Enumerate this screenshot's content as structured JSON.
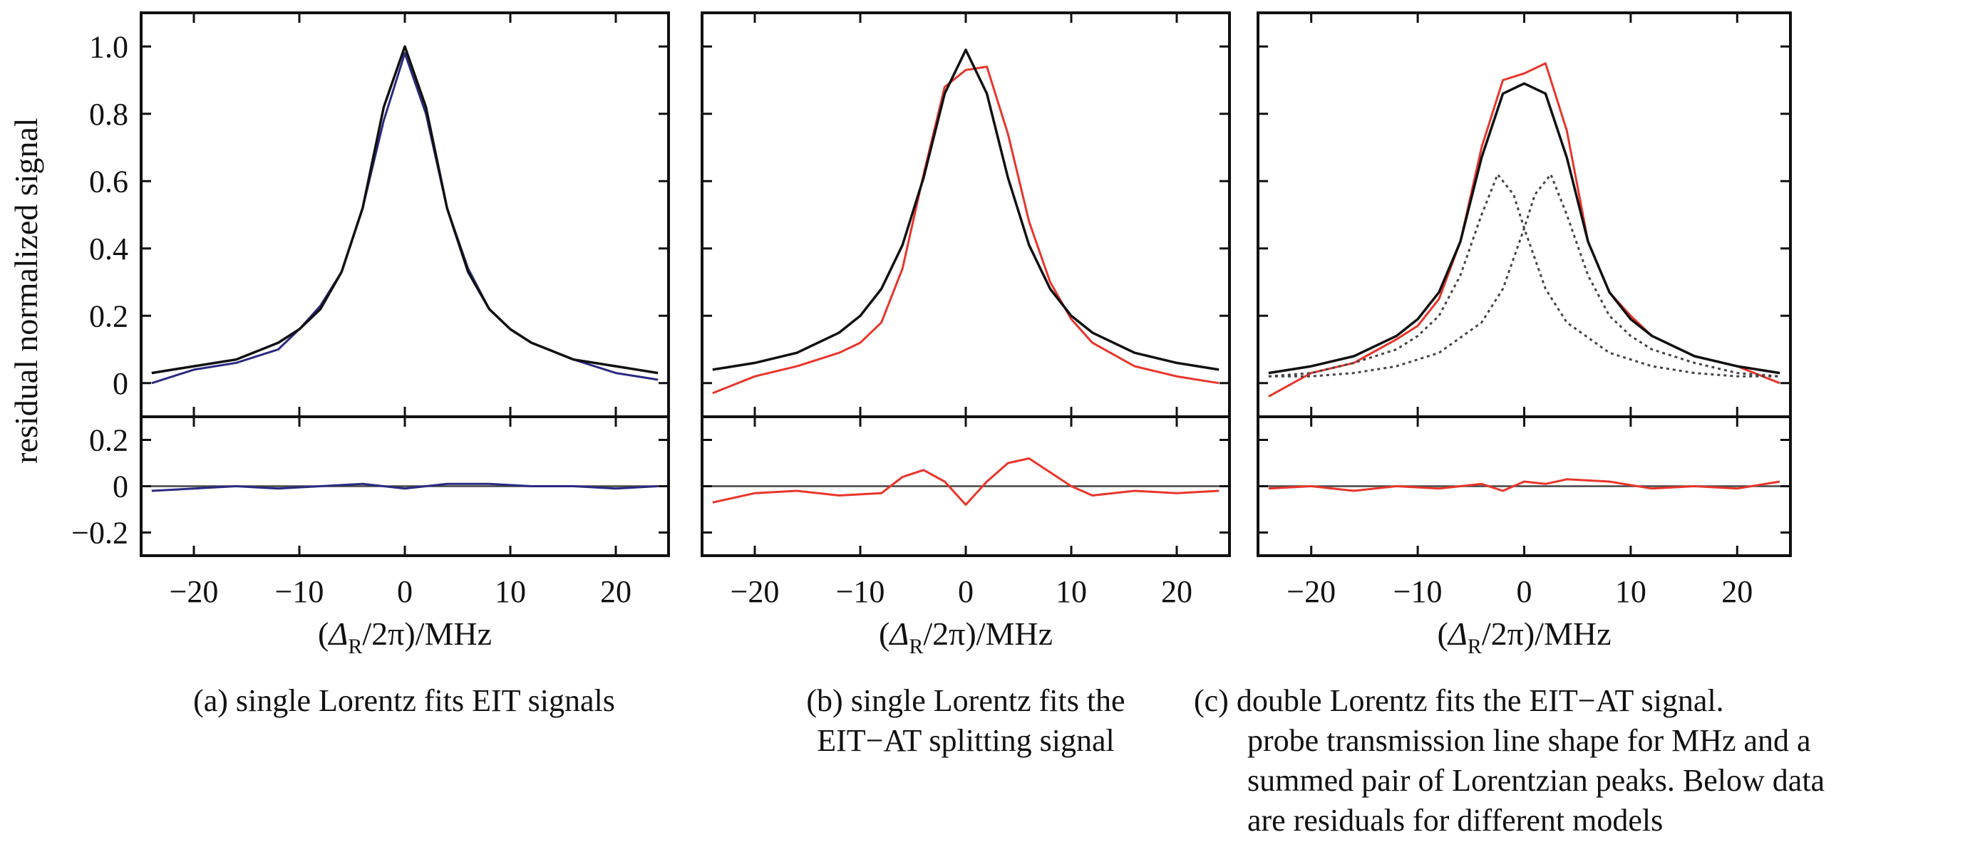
{
  "figure": {
    "ylabel": "residual normalized signal",
    "xlabel": "(Δ_R/2π)/MHz",
    "xlabel_parts": {
      "prefix": "(",
      "delta": "Δ",
      "subscript": "R",
      "suffix": "/2π)/MHz"
    },
    "colors": {
      "blue": "#2a2a82",
      "red": "#e8352b",
      "fit": "#111111",
      "component": "#444444"
    }
  },
  "chart_data": [
    {
      "id": "a",
      "type": "line",
      "caption_lines": [
        "(a) single Lorentz fits EIT signals"
      ],
      "xlim": [
        -25,
        25
      ],
      "x_ticks": [
        -20,
        -10,
        0,
        10,
        20
      ],
      "x_tick_labels": [
        "−20",
        "−10",
        "0",
        "10",
        "20"
      ],
      "upper": {
        "ylim": [
          -0.1,
          1.1
        ],
        "y_ticks": [
          0,
          0.2,
          0.4,
          0.6,
          0.8,
          1.0
        ],
        "y_tick_labels": [
          "0",
          "0.2",
          "0.4",
          "0.6",
          "0.8",
          "1.0"
        ],
        "series": [
          {
            "role": "data",
            "color": "blue",
            "x": [
              -24,
              -20,
              -16,
              -12,
              -10,
              -8,
              -6,
              -4,
              -2,
              0,
              2,
              4,
              6,
              8,
              10,
              12,
              16,
              20,
              24
            ],
            "y": [
              0.0,
              0.04,
              0.06,
              0.1,
              0.16,
              0.23,
              0.33,
              0.52,
              0.78,
              0.98,
              0.8,
              0.52,
              0.34,
              0.22,
              0.16,
              0.12,
              0.07,
              0.03,
              0.01
            ]
          },
          {
            "role": "fit",
            "color": "fit",
            "x": [
              -24,
              -20,
              -16,
              -12,
              -10,
              -8,
              -6,
              -4,
              -2,
              0,
              2,
              4,
              6,
              8,
              10,
              12,
              16,
              20,
              24
            ],
            "y": [
              0.03,
              0.05,
              0.07,
              0.12,
              0.16,
              0.22,
              0.33,
              0.52,
              0.82,
              1.0,
              0.82,
              0.52,
              0.33,
              0.22,
              0.16,
              0.12,
              0.07,
              0.05,
              0.03
            ]
          }
        ]
      },
      "lower": {
        "ylim": [
          -0.3,
          0.3
        ],
        "y_ticks": [
          -0.2,
          0,
          0.2
        ],
        "y_tick_labels": [
          "−0.2",
          "0",
          "0.2"
        ],
        "series": [
          {
            "role": "residual",
            "color": "blue",
            "x": [
              -24,
              -20,
              -16,
              -12,
              -8,
              -4,
              0,
              4,
              8,
              12,
              16,
              20,
              24
            ],
            "y": [
              -0.02,
              -0.01,
              0.0,
              -0.01,
              0.0,
              0.01,
              -0.01,
              0.01,
              0.01,
              0.0,
              0.0,
              -0.01,
              0.0
            ]
          }
        ]
      }
    },
    {
      "id": "b",
      "type": "line",
      "caption_lines": [
        "(b) single Lorentz fits the",
        "EIT−AT splitting signal"
      ],
      "xlim": [
        -25,
        25
      ],
      "x_ticks": [
        -20,
        -10,
        0,
        10,
        20
      ],
      "x_tick_labels": [
        "−20",
        "−10",
        "0",
        "10",
        "20"
      ],
      "upper": {
        "ylim": [
          -0.1,
          1.1
        ],
        "y_ticks": [
          0,
          0.2,
          0.4,
          0.6,
          0.8,
          1.0
        ],
        "y_tick_labels": [],
        "series": [
          {
            "role": "data",
            "color": "red",
            "x": [
              -24,
              -20,
              -16,
              -12,
              -10,
              -8,
              -6,
              -4,
              -2,
              0,
              2,
              4,
              6,
              8,
              10,
              12,
              16,
              20,
              24
            ],
            "y": [
              -0.03,
              0.02,
              0.05,
              0.09,
              0.12,
              0.18,
              0.34,
              0.62,
              0.88,
              0.93,
              0.94,
              0.74,
              0.48,
              0.3,
              0.19,
              0.12,
              0.05,
              0.02,
              0.0
            ]
          },
          {
            "role": "fit",
            "color": "fit",
            "x": [
              -24,
              -20,
              -16,
              -12,
              -10,
              -8,
              -6,
              -4,
              -2,
              0,
              2,
              4,
              6,
              8,
              10,
              12,
              16,
              20,
              24
            ],
            "y": [
              0.04,
              0.06,
              0.09,
              0.15,
              0.2,
              0.28,
              0.41,
              0.61,
              0.86,
              0.99,
              0.86,
              0.61,
              0.41,
              0.28,
              0.2,
              0.15,
              0.09,
              0.06,
              0.04
            ]
          }
        ]
      },
      "lower": {
        "ylim": [
          -0.3,
          0.3
        ],
        "y_ticks": [
          -0.2,
          0,
          0.2
        ],
        "y_tick_labels": [],
        "series": [
          {
            "role": "residual",
            "color": "red",
            "x": [
              -24,
              -20,
              -16,
              -12,
              -8,
              -6,
              -4,
              -2,
              0,
              2,
              4,
              6,
              8,
              10,
              12,
              16,
              20,
              24
            ],
            "y": [
              -0.07,
              -0.03,
              -0.02,
              -0.04,
              -0.03,
              0.04,
              0.07,
              0.02,
              -0.08,
              0.02,
              0.1,
              0.12,
              0.06,
              0.0,
              -0.04,
              -0.02,
              -0.03,
              -0.02
            ]
          }
        ]
      }
    },
    {
      "id": "c",
      "type": "line",
      "caption_lines": [
        "(c) double Lorentz fits the EIT−AT signal.",
        "probe transmission line shape for MHz and a",
        "summed pair of Lorentzian peaks. Below data",
        "are residuals for different models"
      ],
      "xlim": [
        -25,
        25
      ],
      "x_ticks": [
        -20,
        -10,
        0,
        10,
        20
      ],
      "x_tick_labels": [
        "−20",
        "−10",
        "0",
        "10",
        "20"
      ],
      "upper": {
        "ylim": [
          -0.1,
          1.1
        ],
        "y_ticks": [
          0,
          0.2,
          0.4,
          0.6,
          0.8,
          1.0
        ],
        "y_tick_labels": [],
        "series": [
          {
            "role": "data",
            "color": "red",
            "x": [
              -24,
              -20,
              -16,
              -12,
              -10,
              -8,
              -6,
              -4,
              -2,
              0,
              2,
              4,
              6,
              8,
              10,
              12,
              16,
              20,
              24
            ],
            "y": [
              -0.04,
              0.03,
              0.06,
              0.13,
              0.17,
              0.25,
              0.42,
              0.7,
              0.9,
              0.92,
              0.95,
              0.75,
              0.42,
              0.27,
              0.2,
              0.14,
              0.08,
              0.05,
              0.0
            ]
          },
          {
            "role": "fit",
            "color": "fit",
            "x": [
              -24,
              -20,
              -16,
              -12,
              -10,
              -8,
              -6,
              -4,
              -2,
              0,
              2,
              4,
              6,
              8,
              10,
              12,
              16,
              20,
              24
            ],
            "y": [
              0.03,
              0.05,
              0.08,
              0.14,
              0.19,
              0.27,
              0.42,
              0.67,
              0.86,
              0.89,
              0.86,
              0.67,
              0.42,
              0.27,
              0.19,
              0.14,
              0.08,
              0.05,
              0.03
            ]
          },
          {
            "role": "component",
            "color": "component",
            "x": [
              -24,
              -20,
              -16,
              -12,
              -10,
              -8,
              -6,
              -4,
              -2.5,
              -1,
              0,
              2,
              4,
              8,
              12,
              16,
              20,
              24
            ],
            "y": [
              0.02,
              0.03,
              0.06,
              0.1,
              0.14,
              0.2,
              0.32,
              0.5,
              0.62,
              0.56,
              0.46,
              0.28,
              0.18,
              0.09,
              0.05,
              0.03,
              0.02,
              0.02
            ]
          },
          {
            "role": "component",
            "color": "component",
            "x": [
              -24,
              -20,
              -16,
              -12,
              -8,
              -4,
              -2,
              0,
              1,
              2.5,
              4,
              6,
              8,
              10,
              12,
              16,
              20,
              24
            ],
            "y": [
              0.02,
              0.02,
              0.03,
              0.05,
              0.09,
              0.18,
              0.28,
              0.46,
              0.56,
              0.62,
              0.5,
              0.32,
              0.2,
              0.14,
              0.1,
              0.06,
              0.03,
              0.02
            ]
          }
        ]
      },
      "lower": {
        "ylim": [
          -0.3,
          0.3
        ],
        "y_ticks": [
          -0.2,
          0,
          0.2
        ],
        "y_tick_labels": [],
        "series": [
          {
            "role": "residual",
            "color": "red",
            "x": [
              -24,
              -20,
              -16,
              -12,
              -8,
              -4,
              -2,
              0,
              2,
              4,
              8,
              12,
              16,
              20,
              24
            ],
            "y": [
              -0.01,
              0.0,
              -0.02,
              0.0,
              -0.01,
              0.01,
              -0.02,
              0.02,
              0.01,
              0.03,
              0.02,
              -0.01,
              0.0,
              -0.01,
              0.02
            ]
          }
        ]
      }
    }
  ]
}
